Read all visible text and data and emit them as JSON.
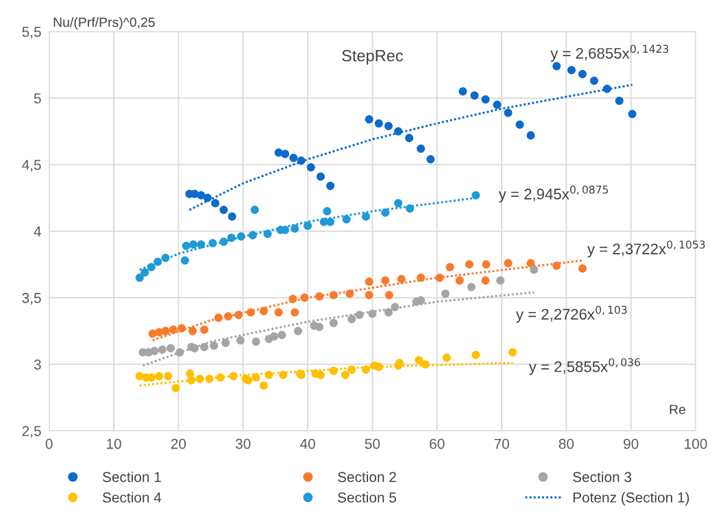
{
  "chart_data": {
    "type": "scatter",
    "title": "StepRec",
    "xlabel": "Re",
    "ylabel": "Nu/(Prf/Prs)^0,25",
    "xlim": [
      0,
      100
    ],
    "xticks": [
      0,
      10,
      20,
      30,
      40,
      50,
      60,
      70,
      80,
      90,
      100
    ],
    "ylim": [
      2.5,
      5.5
    ],
    "yticks": [
      {
        "value": 2.5,
        "label": "2,5"
      },
      {
        "value": 3,
        "label": "3"
      },
      {
        "value": 3.5,
        "label": "3,5"
      },
      {
        "value": 4,
        "label": "4"
      },
      {
        "value": 4.5,
        "label": "4,5"
      },
      {
        "value": 5,
        "label": "5"
      },
      {
        "value": 5.5,
        "label": "5,5"
      }
    ],
    "grid": true,
    "legend": "bottom",
    "series": [
      {
        "name": "Section 1",
        "color": "#0b6bcb",
        "marker": "circle",
        "x": [
          21.7,
          22.5,
          23.5,
          24.5,
          25.7,
          27,
          28.3,
          35.5,
          36.5,
          37.8,
          39,
          40.5,
          42,
          43.5,
          49.5,
          51,
          52.5,
          54,
          55.7,
          57.5,
          59,
          64,
          65.8,
          67.5,
          69.3,
          71,
          72.8,
          74.5,
          78.5,
          80.8,
          82.5,
          84.3,
          86.3,
          88.2,
          90.2
        ],
        "values": [
          4.28,
          4.28,
          4.27,
          4.25,
          4.21,
          4.16,
          4.11,
          4.59,
          4.58,
          4.55,
          4.53,
          4.48,
          4.41,
          4.34,
          4.84,
          4.81,
          4.79,
          4.75,
          4.7,
          4.62,
          4.54,
          5.05,
          5.02,
          4.99,
          4.95,
          4.89,
          4.8,
          4.72,
          5.24,
          5.21,
          5.18,
          5.13,
          5.07,
          4.98,
          4.88
        ]
      },
      {
        "name": "Section 2",
        "color": "#f97a2b",
        "marker": "circle",
        "x": [
          16,
          17,
          18,
          19.2,
          20.5,
          22.2,
          24,
          26.2,
          27.7,
          29.3,
          31.2,
          33.2,
          35.5,
          37.7,
          38,
          39.5,
          41.8,
          44,
          46.5,
          49.5,
          49.5,
          52,
          52.6,
          54.5,
          57.5,
          60.4,
          62,
          63.5,
          65,
          67.5,
          67.6,
          71,
          74.5,
          78.5,
          82.5
        ],
        "values": [
          3.23,
          3.24,
          3.25,
          3.26,
          3.27,
          3.25,
          3.26,
          3.35,
          3.36,
          3.37,
          3.39,
          3.4,
          3.39,
          3.49,
          3.39,
          3.5,
          3.51,
          3.52,
          3.53,
          3.62,
          3.52,
          3.63,
          3.52,
          3.64,
          3.65,
          3.65,
          3.73,
          3.63,
          3.75,
          3.63,
          3.75,
          3.76,
          3.76,
          3.74,
          3.72
        ]
      },
      {
        "name": "Section 3",
        "color": "#a5a5a5",
        "marker": "circle",
        "x": [
          14.5,
          15.4,
          16.3,
          17.5,
          18.8,
          20.2,
          22,
          22.5,
          24,
          25.5,
          27.3,
          29.6,
          32,
          34,
          34.8,
          36,
          38.5,
          41,
          41.8,
          44,
          46.8,
          48,
          50,
          52.5,
          53.5,
          56.8,
          57.5,
          61.3,
          65.3,
          69.8,
          75
        ],
        "values": [
          3.09,
          3.09,
          3.1,
          3.11,
          3.12,
          3.09,
          3.13,
          3.12,
          3.13,
          3.14,
          3.16,
          3.18,
          3.17,
          3.19,
          3.21,
          3.22,
          3.25,
          3.29,
          3.28,
          3.31,
          3.34,
          3.37,
          3.38,
          3.39,
          3.43,
          3.47,
          3.48,
          3.53,
          3.58,
          3.63,
          3.71
        ]
      },
      {
        "name": "Section 4",
        "color": "#ffc000",
        "marker": "circle",
        "x": [
          14,
          15,
          15.8,
          17,
          18.4,
          19.6,
          21.8,
          22,
          23.3,
          24.8,
          26.5,
          28.5,
          30.4,
          30.8,
          32,
          33.2,
          34,
          36.2,
          38.8,
          39,
          41.2,
          42,
          44,
          45.8,
          46.8,
          49,
          50.3,
          51,
          54,
          54.2,
          57.2,
          58.2,
          61.5,
          66,
          71.7
        ],
        "values": [
          2.91,
          2.9,
          2.9,
          2.91,
          2.91,
          2.82,
          2.93,
          2.88,
          2.89,
          2.89,
          2.9,
          2.91,
          2.89,
          2.88,
          2.9,
          2.84,
          2.92,
          2.92,
          2.93,
          2.92,
          2.93,
          2.92,
          2.95,
          2.92,
          2.96,
          2.96,
          2.99,
          2.98,
          2.99,
          3.01,
          3.03,
          3.0,
          3.05,
          3.07,
          3.09
        ]
      },
      {
        "name": "Section 5",
        "color": "#1f9ad6",
        "marker": "circle",
        "x": [
          14,
          14.8,
          15.8,
          16.8,
          18,
          21,
          21.2,
          22.3,
          23.5,
          25.3,
          27,
          28.2,
          29.7,
          31.5,
          31.8,
          33.8,
          35.8,
          36.5,
          38,
          40,
          42.5,
          43,
          43.5,
          46,
          49,
          52,
          54,
          55.8,
          66
        ],
        "values": [
          3.65,
          3.69,
          3.73,
          3.77,
          3.8,
          3.78,
          3.89,
          3.9,
          3.9,
          3.91,
          3.92,
          3.95,
          3.96,
          3.97,
          4.16,
          3.98,
          4.01,
          4.01,
          4.02,
          4.04,
          4.07,
          4.15,
          4.07,
          4.09,
          4.11,
          4.14,
          4.21,
          4.17,
          4.27
        ]
      },
      {
        "name": "Potenz (Section 1)",
        "type": "line",
        "line_style": "dotted",
        "color": "#0b6bcb",
        "x": [
          21.7,
          30,
          40,
          50,
          60,
          70,
          80,
          90.2
        ],
        "values": [
          4.16,
          4.36,
          4.54,
          4.69,
          4.81,
          4.92,
          5.01,
          5.1
        ]
      },
      {
        "type": "line",
        "line_style": "dotted",
        "color": "#f97a2b",
        "x": [
          16,
          25,
          40,
          60,
          82.5
        ],
        "values": [
          3.18,
          3.33,
          3.5,
          3.65,
          3.78
        ]
      },
      {
        "type": "line",
        "line_style": "dotted",
        "color": "#a5a5a5",
        "x": [
          14.5,
          25,
          40,
          60,
          75
        ],
        "values": [
          2.99,
          3.17,
          3.32,
          3.47,
          3.54
        ]
      },
      {
        "type": "line",
        "line_style": "dotted",
        "color": "#ffc000",
        "x": [
          14,
          30,
          50,
          71.7
        ],
        "values": [
          2.84,
          2.92,
          2.98,
          3.01
        ]
      },
      {
        "type": "line",
        "line_style": "dotted",
        "color": "#1f9ad6",
        "x": [
          14,
          20,
          30,
          40,
          50,
          66
        ],
        "values": [
          3.71,
          3.83,
          3.96,
          4.07,
          4.15,
          4.25
        ]
      }
    ],
    "annotations": [
      "y = 2,6855x$^{0,1423}$",
      "y = 2,3722x$^{0,1053}$",
      "y = 2,2726x$^{0,103}$",
      "y = 2,5855x$^{0,036}$",
      "y = 2,945x$^{0,0875}$"
    ]
  }
}
